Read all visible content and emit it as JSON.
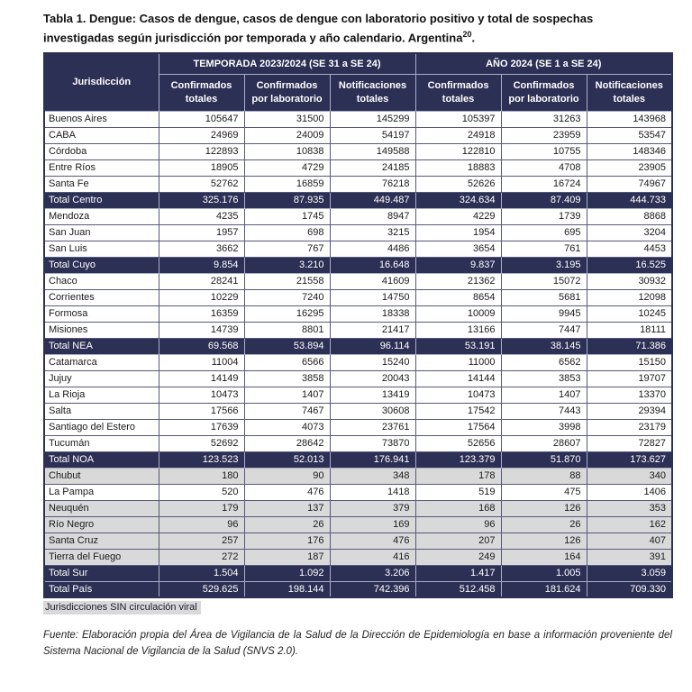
{
  "colors": {
    "header_navy": "#2D3055",
    "total_row_navy": "#2D3055",
    "shaded_row_gray": "#D9D9D9"
  },
  "title": {
    "line1": "Tabla 1. Dengue: Casos de dengue, casos de dengue con laboratorio positivo y total de sospechas",
    "line2_text": "investigadas según jurisdicción por temporada y año calendario. Argentina",
    "superscript": "20",
    "period": "."
  },
  "table": {
    "jurisdiccion_header": "Jurisdicción",
    "groups": [
      {
        "label": "TEMPORADA 2023/2024 (SE 31 a SE 24)",
        "columns": [
          "Confirmados totales",
          "Confirmados por laboratorio",
          "Notificaciones totales"
        ]
      },
      {
        "label": "AÑO 2024 (SE 1 a SE 24)",
        "columns": [
          "Confirmados totales",
          "Confirmados por laboratorio",
          "Notificaciones totales"
        ]
      }
    ],
    "rows": [
      {
        "name": "Buenos Aires",
        "type": "data",
        "shaded": false,
        "values": [
          "105647",
          "31500",
          "145299",
          "105397",
          "31263",
          "143968"
        ]
      },
      {
        "name": "CABA",
        "type": "data",
        "shaded": false,
        "values": [
          "24969",
          "24009",
          "54197",
          "24918",
          "23959",
          "53547"
        ]
      },
      {
        "name": "Córdoba",
        "type": "data",
        "shaded": false,
        "values": [
          "122893",
          "10838",
          "149588",
          "122810",
          "10755",
          "148346"
        ]
      },
      {
        "name": "Entre Ríos",
        "type": "data",
        "shaded": false,
        "values": [
          "18905",
          "4729",
          "24185",
          "18883",
          "4708",
          "23905"
        ]
      },
      {
        "name": "Santa Fe",
        "type": "data",
        "shaded": false,
        "values": [
          "52762",
          "16859",
          "76218",
          "52626",
          "16724",
          "74967"
        ]
      },
      {
        "name": "Total Centro",
        "type": "total",
        "shaded": false,
        "values": [
          "325.176",
          "87.935",
          "449.487",
          "324.634",
          "87.409",
          "444.733"
        ]
      },
      {
        "name": "Mendoza",
        "type": "data",
        "shaded": false,
        "values": [
          "4235",
          "1745",
          "8947",
          "4229",
          "1739",
          "8868"
        ]
      },
      {
        "name": "San Juan",
        "type": "data",
        "shaded": false,
        "values": [
          "1957",
          "698",
          "3215",
          "1954",
          "695",
          "3204"
        ]
      },
      {
        "name": "San Luis",
        "type": "data",
        "shaded": false,
        "values": [
          "3662",
          "767",
          "4486",
          "3654",
          "761",
          "4453"
        ]
      },
      {
        "name": "Total Cuyo",
        "type": "total",
        "shaded": false,
        "values": [
          "9.854",
          "3.210",
          "16.648",
          "9.837",
          "3.195",
          "16.525"
        ]
      },
      {
        "name": "Chaco",
        "type": "data",
        "shaded": false,
        "values": [
          "28241",
          "21558",
          "41609",
          "21362",
          "15072",
          "30932"
        ]
      },
      {
        "name": "Corrientes",
        "type": "data",
        "shaded": false,
        "values": [
          "10229",
          "7240",
          "14750",
          "8654",
          "5681",
          "12098"
        ]
      },
      {
        "name": "Formosa",
        "type": "data",
        "shaded": false,
        "values": [
          "16359",
          "16295",
          "18338",
          "10009",
          "9945",
          "10245"
        ]
      },
      {
        "name": "Misiones",
        "type": "data",
        "shaded": false,
        "values": [
          "14739",
          "8801",
          "21417",
          "13166",
          "7447",
          "18111"
        ]
      },
      {
        "name": "Total NEA",
        "type": "total",
        "shaded": false,
        "values": [
          "69.568",
          "53.894",
          "96.114",
          "53.191",
          "38.145",
          "71.386"
        ]
      },
      {
        "name": "Catamarca",
        "type": "data",
        "shaded": false,
        "values": [
          "11004",
          "6566",
          "15240",
          "11000",
          "6562",
          "15150"
        ]
      },
      {
        "name": "Jujuy",
        "type": "data",
        "shaded": false,
        "values": [
          "14149",
          "3858",
          "20043",
          "14144",
          "3853",
          "19707"
        ]
      },
      {
        "name": "La Rioja",
        "type": "data",
        "shaded": false,
        "values": [
          "10473",
          "1407",
          "13419",
          "10473",
          "1407",
          "13370"
        ]
      },
      {
        "name": "Salta",
        "type": "data",
        "shaded": false,
        "values": [
          "17566",
          "7467",
          "30608",
          "17542",
          "7443",
          "29394"
        ]
      },
      {
        "name": "Santiago del Estero",
        "type": "data",
        "shaded": false,
        "values": [
          "17639",
          "4073",
          "23761",
          "17564",
          "3998",
          "23179"
        ]
      },
      {
        "name": "Tucumán",
        "type": "data",
        "shaded": false,
        "values": [
          "52692",
          "28642",
          "73870",
          "52656",
          "28607",
          "72827"
        ]
      },
      {
        "name": "Total NOA",
        "type": "total",
        "shaded": false,
        "values": [
          "123.523",
          "52.013",
          "176.941",
          "123.379",
          "51.870",
          "173.627"
        ]
      },
      {
        "name": "Chubut",
        "type": "data",
        "shaded": true,
        "values": [
          "180",
          "90",
          "348",
          "178",
          "88",
          "340"
        ]
      },
      {
        "name": "La Pampa",
        "type": "data",
        "shaded": false,
        "values": [
          "520",
          "476",
          "1418",
          "519",
          "475",
          "1406"
        ]
      },
      {
        "name": "Neuquén",
        "type": "data",
        "shaded": true,
        "values": [
          "179",
          "137",
          "379",
          "168",
          "126",
          "353"
        ]
      },
      {
        "name": "Río Negro",
        "type": "data",
        "shaded": true,
        "values": [
          "96",
          "26",
          "169",
          "96",
          "26",
          "162"
        ]
      },
      {
        "name": "Santa Cruz",
        "type": "data",
        "shaded": true,
        "values": [
          "257",
          "176",
          "476",
          "207",
          "126",
          "407"
        ]
      },
      {
        "name": "Tierra del Fuego",
        "type": "data",
        "shaded": true,
        "values": [
          "272",
          "187",
          "416",
          "249",
          "164",
          "391"
        ]
      },
      {
        "name": "Total Sur",
        "type": "total",
        "shaded": false,
        "values": [
          "1.504",
          "1.092",
          "3.206",
          "1.417",
          "1.005",
          "3.059"
        ]
      },
      {
        "name": "Total País",
        "type": "total",
        "shaded": false,
        "values": [
          "529.625",
          "198.144",
          "742.396",
          "512.458",
          "181.624",
          "709.330"
        ]
      }
    ]
  },
  "legend": "Jurisdicciones SIN circulación viral",
  "source": "Fuente: Elaboración propia del Área de Vigilancia de la Salud de la Dirección de Epidemiología en base a información proveniente del Sistema Nacional de Vigilancia de la Salud (SNVS 2.0)."
}
